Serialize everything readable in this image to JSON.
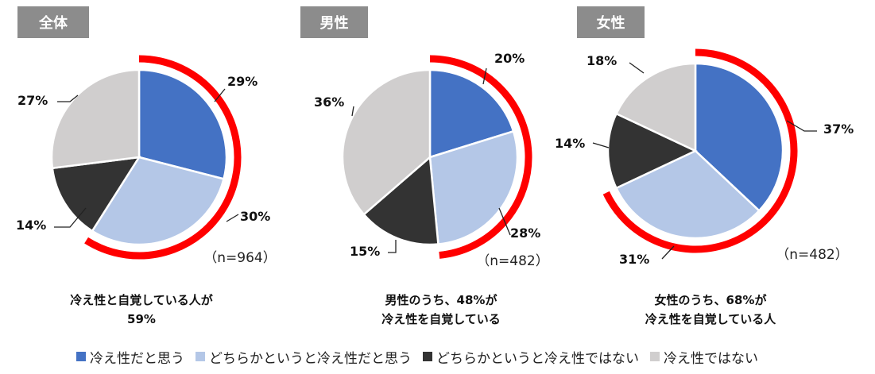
{
  "colors": {
    "blue": "#4472c4",
    "light_blue": "#b4c7e7",
    "dark": "#333333",
    "gray": "#d0cece",
    "red": "#ff0000",
    "tag_bg": "#8c8c8c"
  },
  "chart_data": [
    {
      "type": "pie",
      "tag": "全体",
      "n_label": "（n=964）",
      "categories": [
        "冷え性だと思う",
        "どちらかというと冷え性だと思う",
        "どちらかというと冷え性ではない",
        "冷え性ではない"
      ],
      "values": [
        29,
        30,
        14,
        27
      ],
      "labels": [
        "29%",
        "30%",
        "14%",
        "27%"
      ],
      "highlight_share": 59,
      "summary": [
        "冷え性と自覚している人が",
        "59%"
      ]
    },
    {
      "type": "pie",
      "tag": "男性",
      "n_label": "（n=482）",
      "categories": [
        "冷え性だと思う",
        "どちらかというと冷え性だと思う",
        "どちらかというと冷え性ではない",
        "冷え性ではない"
      ],
      "values": [
        20,
        28,
        15,
        36
      ],
      "labels": [
        "20%",
        "28%",
        "15%",
        "36%"
      ],
      "highlight_share": 48,
      "summary": [
        "男性のうち、48%が",
        "冷え性を自覚している"
      ]
    },
    {
      "type": "pie",
      "tag": "女性",
      "n_label": "（n=482）",
      "categories": [
        "冷え性だと思う",
        "どちらかというと冷え性だと思う",
        "どちらかというと冷え性ではない",
        "冷え性ではない"
      ],
      "values": [
        37,
        31,
        14,
        18
      ],
      "labels": [
        "37%",
        "31%",
        "14%",
        "18%"
      ],
      "highlight_share": 68,
      "summary": [
        "女性のうち、68%が",
        "冷え性を自覚している人"
      ]
    }
  ],
  "legend": {
    "position": "bottom",
    "items": [
      {
        "label": "冷え性だと思う",
        "color": "#4472c4"
      },
      {
        "label": "どちらかというと冷え性だと思う",
        "color": "#b4c7e7"
      },
      {
        "label": "どちらかというと冷え性ではない",
        "color": "#333333"
      },
      {
        "label": "冷え性ではない",
        "color": "#d0cece"
      }
    ]
  }
}
